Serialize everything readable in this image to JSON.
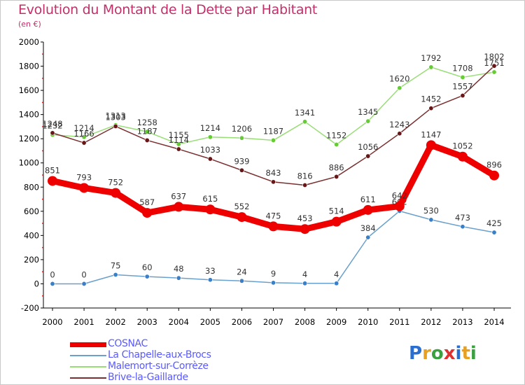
{
  "header": {
    "title": "Evolution du Montant de la Dette par Habitant",
    "unit": "(en €)"
  },
  "logo": {
    "text": "Proxiti",
    "colors": [
      "#2a6fd0",
      "#e8a020",
      "#3aa040",
      "#e03030",
      "#2a6fd0",
      "#e8a020",
      "#3aa040"
    ]
  },
  "chart_data": {
    "type": "line",
    "title": "Evolution du Montant de la Dette par Habitant",
    "ylabel": "(en €)",
    "x": [
      "2000",
      "2001",
      "2002",
      "2003",
      "2004",
      "2005",
      "2006",
      "2007",
      "2008",
      "2009",
      "2010",
      "2011",
      "2012",
      "2013",
      "2014"
    ],
    "ylim": [
      -200,
      2000
    ],
    "yticks": [
      -200,
      0,
      200,
      400,
      600,
      800,
      1000,
      1200,
      1400,
      1600,
      1800,
      2000
    ],
    "grid": false,
    "legend": "bottom-left",
    "series": [
      {
        "name": "COSNAC",
        "color": "#ee0000",
        "marker": "#ee0000",
        "values": [
          851,
          793,
          752,
          587,
          637,
          615,
          552,
          475,
          453,
          514,
          611,
          642,
          1147,
          1052,
          896
        ]
      },
      {
        "name": "La Chapelle-aux-Brocs",
        "color": "#6aa0cc",
        "marker": "#3a80c8",
        "values": [
          0,
          0,
          75,
          60,
          48,
          33,
          24,
          9,
          4,
          4,
          384,
          602,
          530,
          473,
          425
        ]
      },
      {
        "name": "Malemort-sur-Corrèze",
        "color": "#99dd77",
        "marker": "#66cc33",
        "values": [
          1232,
          1214,
          1313,
          1258,
          1155,
          1214,
          1206,
          1187,
          1341,
          1152,
          1345,
          1620,
          1792,
          1708,
          1751
        ]
      },
      {
        "name": "Brive-la-Gaillarde",
        "color": "#7a3030",
        "marker": "#661818",
        "values": [
          1248,
          1166,
          1303,
          1187,
          1114,
          1033,
          939,
          843,
          816,
          886,
          1056,
          1243,
          1452,
          1557,
          1802
        ]
      }
    ]
  }
}
